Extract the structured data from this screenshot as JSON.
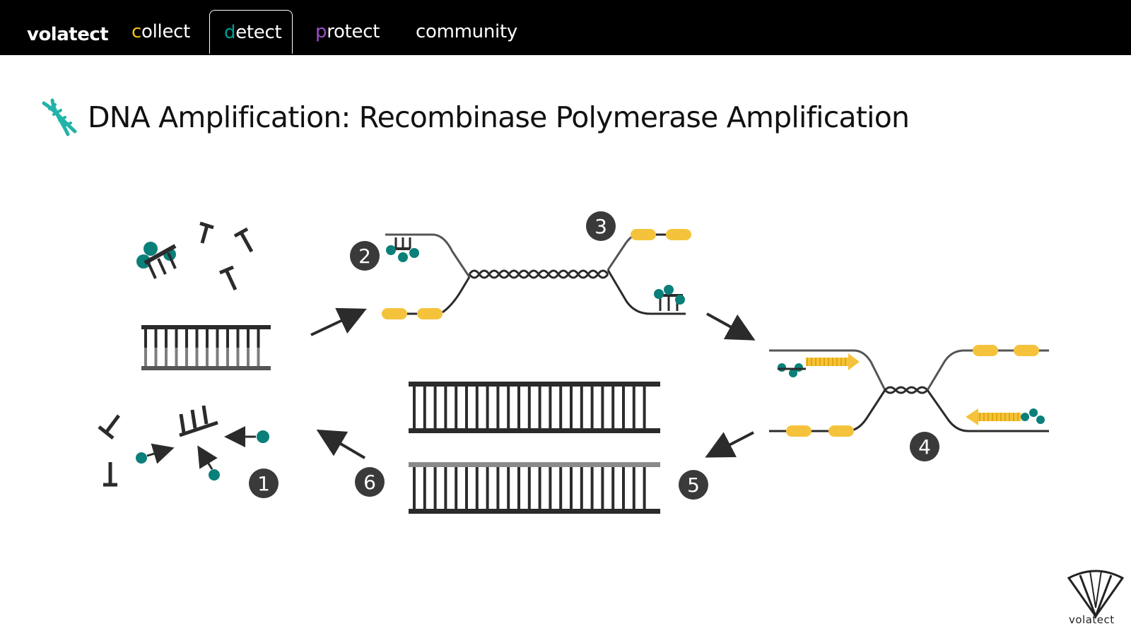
{
  "nav": {
    "brand": "volatect",
    "items": [
      {
        "label": "collect",
        "accent": "#f5c518",
        "active": false
      },
      {
        "label": "detect",
        "accent": "#009e96",
        "active": true
      },
      {
        "label": "protect",
        "accent": "#9b4dca",
        "active": false
      },
      {
        "label": "community",
        "accent": "#ffffff",
        "active": false
      }
    ]
  },
  "page": {
    "title": "DNA Amplification: Recombinase Polymerase Amplification",
    "title_icon": "dna-icon",
    "icon_color": "#21b3a8"
  },
  "diagram": {
    "colors": {
      "strand": "#2b2b2b",
      "strand_light": "#888888",
      "protein": "#0b7f7a",
      "primer": "#f5c33b"
    },
    "steps": [
      "1",
      "2",
      "3",
      "4",
      "5",
      "6"
    ]
  },
  "footer": {
    "logo_text": "volatect",
    "logo_icon": "shield-logo-icon"
  }
}
